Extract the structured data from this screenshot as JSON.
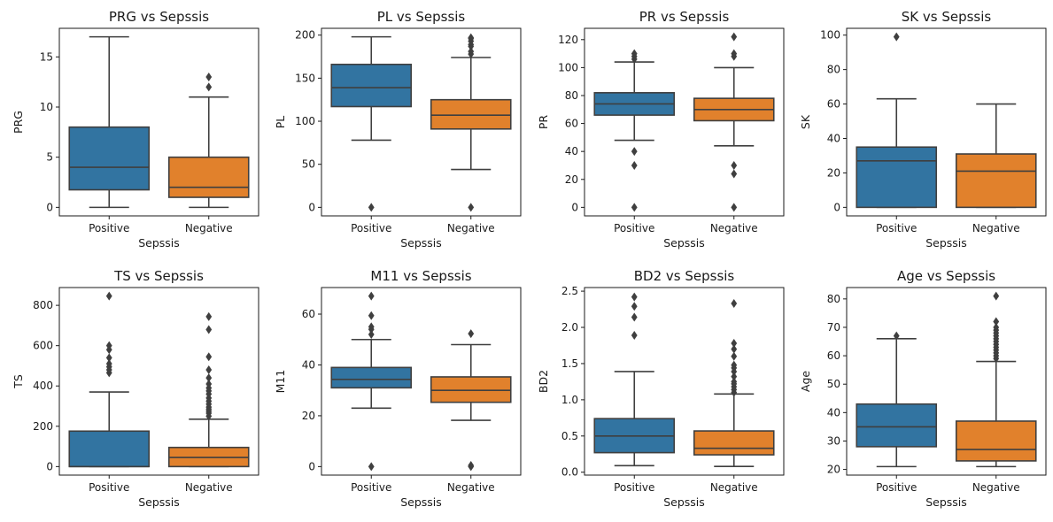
{
  "colors": {
    "positive": "#3274a1",
    "negative": "#e1812c",
    "line": "#3f3f3f"
  },
  "chart_data": [
    {
      "type": "box",
      "title": "PRG vs Sepssis",
      "xlabel": "Sepssis",
      "ylabel": "PRG",
      "categories": [
        "Positive",
        "Negative"
      ],
      "ylim": [
        -0.85,
        17.85
      ],
      "yticks": [
        0,
        5,
        10,
        15
      ],
      "boxes": [
        {
          "q1": 1.75,
          "median": 4,
          "q3": 8,
          "whisker_low": 0,
          "whisker_high": 17,
          "outliers": []
        },
        {
          "q1": 1,
          "median": 2,
          "q3": 5,
          "whisker_low": 0,
          "whisker_high": 11,
          "outliers": [
            12,
            13
          ]
        }
      ]
    },
    {
      "type": "box",
      "title": "PL vs Sepssis",
      "xlabel": "Sepssis",
      "ylabel": "PL",
      "categories": [
        "Positive",
        "Negative"
      ],
      "ylim": [
        -9.9,
        207.9
      ],
      "yticks": [
        0,
        50,
        100,
        150,
        200
      ],
      "boxes": [
        {
          "q1": 117,
          "median": 139,
          "q3": 166,
          "whisker_low": 78,
          "whisker_high": 198,
          "outliers": [
            0
          ]
        },
        {
          "q1": 91,
          "median": 107,
          "q3": 125,
          "whisker_low": 44,
          "whisker_high": 174,
          "outliers": [
            0,
            178,
            181,
            187,
            189,
            193,
            196,
            197
          ]
        }
      ]
    },
    {
      "type": "box",
      "title": "PR vs Sepssis",
      "xlabel": "Sepssis",
      "ylabel": "PR",
      "categories": [
        "Positive",
        "Negative"
      ],
      "ylim": [
        -6.1,
        128.1
      ],
      "yticks": [
        0,
        20,
        40,
        60,
        80,
        100,
        120
      ],
      "boxes": [
        {
          "q1": 66,
          "median": 74,
          "q3": 82,
          "whisker_low": 48,
          "whisker_high": 104,
          "outliers": [
            0,
            30,
            40,
            106,
            108,
            110
          ]
        },
        {
          "q1": 62,
          "median": 70,
          "q3": 78,
          "whisker_low": 44,
          "whisker_high": 100,
          "outliers": [
            0,
            24,
            30,
            108,
            110,
            122
          ]
        }
      ]
    },
    {
      "type": "box",
      "title": "SK vs Sepssis",
      "xlabel": "Sepssis",
      "ylabel": "SK",
      "categories": [
        "Positive",
        "Negative"
      ],
      "ylim": [
        -4.95,
        103.95
      ],
      "yticks": [
        0,
        20,
        40,
        60,
        80,
        100
      ],
      "boxes": [
        {
          "q1": 0,
          "median": 27,
          "q3": 35,
          "whisker_low": 0,
          "whisker_high": 63,
          "outliers": [
            99
          ]
        },
        {
          "q1": 0,
          "median": 21,
          "q3": 31,
          "whisker_low": 0,
          "whisker_high": 60,
          "outliers": []
        }
      ]
    },
    {
      "type": "box",
      "title": "TS vs Sepssis",
      "xlabel": "Sepssis",
      "ylabel": "TS",
      "categories": [
        "Positive",
        "Negative"
      ],
      "ylim": [
        -42.3,
        888.3
      ],
      "yticks": [
        0,
        200,
        400,
        600,
        800
      ],
      "boxes": [
        {
          "q1": 0,
          "median": 0,
          "q3": 176,
          "whisker_low": 0,
          "whisker_high": 370,
          "outliers": [
            465,
            480,
            495,
            510,
            540,
            580,
            600,
            846
          ]
        },
        {
          "q1": 0,
          "median": 45,
          "q3": 95,
          "whisker_low": 0,
          "whisker_high": 235,
          "outliers": [
            250,
            265,
            275,
            285,
            295,
            310,
            325,
            340,
            360,
            375,
            390,
            410,
            440,
            480,
            545,
            680,
            744
          ]
        }
      ]
    },
    {
      "type": "box",
      "title": "M11 vs Sepssis",
      "xlabel": "Sepssis",
      "ylabel": "M11",
      "categories": [
        "Positive",
        "Negative"
      ],
      "ylim": [
        -3.35,
        70.45
      ],
      "yticks": [
        0,
        20,
        40,
        60
      ],
      "boxes": [
        {
          "q1": 31,
          "median": 34.3,
          "q3": 39,
          "whisker_low": 23,
          "whisker_high": 50,
          "outliers": [
            0,
            52,
            54,
            55,
            59.4,
            67.1
          ]
        },
        {
          "q1": 25.3,
          "median": 30,
          "q3": 35.3,
          "whisker_low": 18.2,
          "whisker_high": 48,
          "outliers": [
            0,
            0.5,
            52.3
          ]
        }
      ]
    },
    {
      "type": "box",
      "title": "BD2 vs Sepssis",
      "xlabel": "Sepssis",
      "ylabel": "BD2",
      "categories": [
        "Positive",
        "Negative"
      ],
      "ylim": [
        -0.04,
        2.55
      ],
      "yticks": [
        0.0,
        0.5,
        1.0,
        1.5,
        2.0,
        2.5
      ],
      "boxes": [
        {
          "q1": 0.27,
          "median": 0.5,
          "q3": 0.74,
          "whisker_low": 0.09,
          "whisker_high": 1.39,
          "outliers": [
            1.89,
            2.14,
            2.29,
            2.42
          ]
        },
        {
          "q1": 0.24,
          "median": 0.33,
          "q3": 0.57,
          "whisker_low": 0.08,
          "whisker_high": 1.08,
          "outliers": [
            1.1,
            1.14,
            1.18,
            1.22,
            1.25,
            1.32,
            1.39,
            1.44,
            1.48,
            1.6,
            1.7,
            1.78,
            2.33
          ]
        }
      ]
    },
    {
      "type": "box",
      "title": "Age vs Sepssis",
      "xlabel": "Sepssis",
      "ylabel": "Age",
      "categories": [
        "Positive",
        "Negative"
      ],
      "ylim": [
        18,
        84
      ],
      "yticks": [
        20,
        30,
        40,
        50,
        60,
        70,
        80
      ],
      "boxes": [
        {
          "q1": 28,
          "median": 35,
          "q3": 43,
          "whisker_low": 21,
          "whisker_high": 66,
          "outliers": [
            67
          ]
        },
        {
          "q1": 23,
          "median": 27,
          "q3": 37,
          "whisker_low": 21,
          "whisker_high": 58,
          "outliers": [
            59,
            60,
            61,
            62,
            63,
            64,
            65,
            66,
            67,
            68,
            69,
            70,
            72,
            81
          ]
        }
      ]
    }
  ]
}
